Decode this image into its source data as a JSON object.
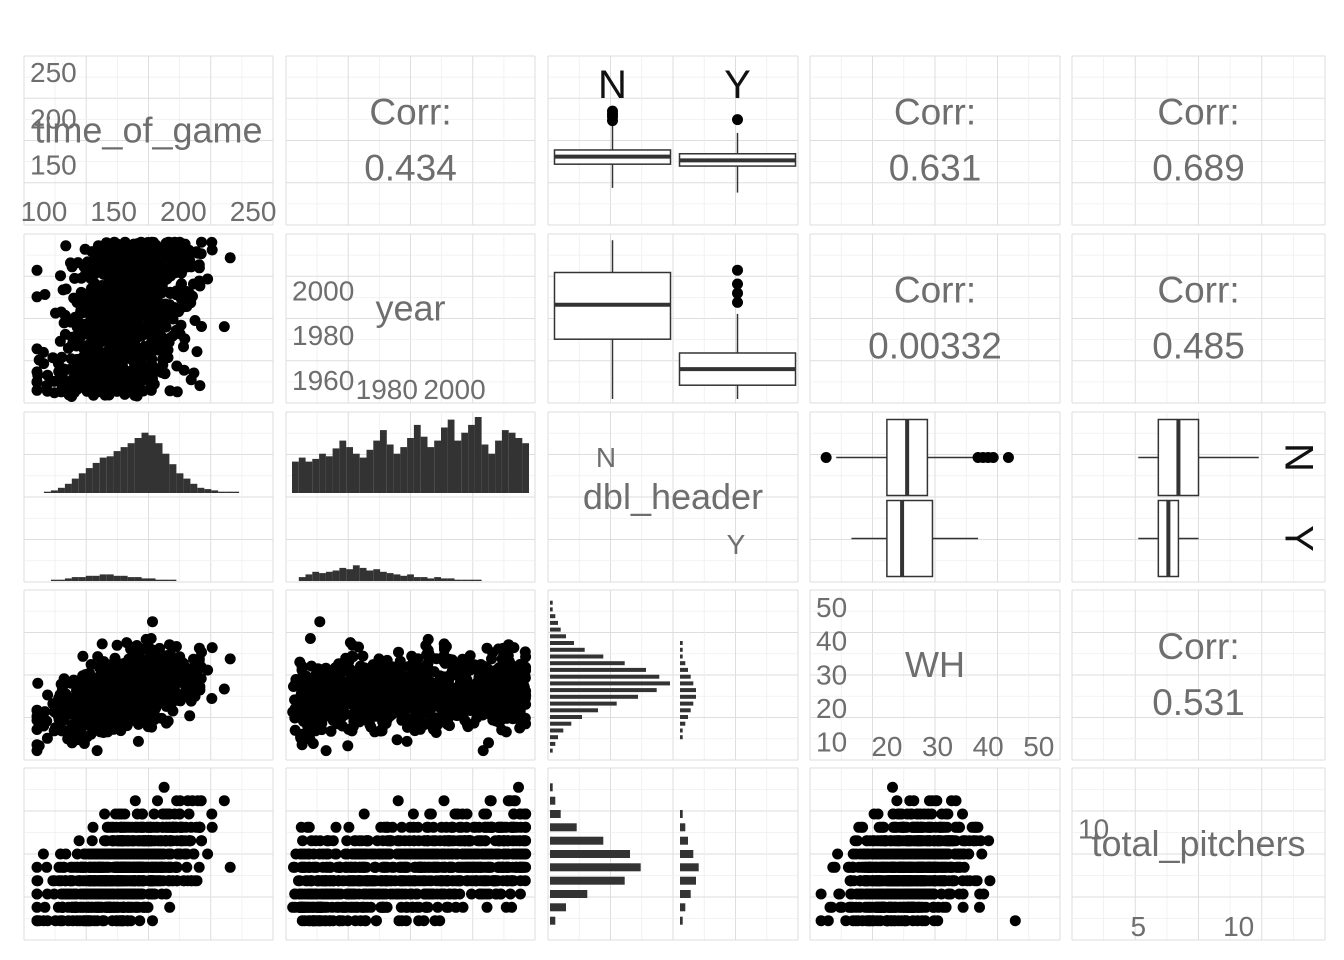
{
  "chart_data": {
    "type": "scatter",
    "variables": [
      "time_of_game",
      "year",
      "dbl_header",
      "WH",
      "total_pitchers"
    ],
    "facet_levels": [
      "N",
      "Y"
    ],
    "correlations": {
      "time_of_game_year": {
        "label": "Corr:",
        "value": "0.434"
      },
      "time_of_game_WH": {
        "label": "Corr:",
        "value": "0.631"
      },
      "time_of_game_total_pitchers": {
        "label": "Corr:",
        "value": "0.689"
      },
      "year_WH": {
        "label": "Corr:",
        "value": "0.00332"
      },
      "year_total_pitchers": {
        "label": "Corr:",
        "value": "0.485"
      },
      "WH_total_pitchers": {
        "label": "Corr:",
        "value": "0.531"
      }
    },
    "diag_axes": {
      "time_of_game": {
        "y_ticks": [
          "250",
          "200",
          "150"
        ],
        "x_ticks": [
          "100",
          "150",
          "200",
          "250"
        ]
      },
      "year": {
        "y_ticks": [
          "2000",
          "1980",
          "1960"
        ],
        "x_ticks": [
          "1980",
          "2000"
        ]
      },
      "WH": {
        "y_ticks": [
          "50",
          "40",
          "30",
          "20",
          "10"
        ],
        "x_ticks": [
          "20",
          "30",
          "40",
          "50"
        ]
      },
      "total_pitchers": {
        "y_ticks": [
          "10"
        ],
        "x_ticks": [
          "5",
          "10"
        ]
      }
    },
    "ranges": {
      "time_of_game": [
        90,
        260
      ],
      "year": [
        1952,
        2022
      ],
      "WH": [
        6,
        53
      ],
      "total_pitchers": [
        2,
        14
      ]
    },
    "boxplots": {
      "time_of_game": {
        "N": {
          "q1": 150,
          "median": 158,
          "q3": 165,
          "lo": 125,
          "hi": 192,
          "outliers": [
            196,
            200,
            203,
            206
          ]
        },
        "Y": {
          "q1": 148,
          "median": 154,
          "q3": 161,
          "lo": 120,
          "hi": 183,
          "outliers": [
            197
          ]
        }
      },
      "year": {
        "N": {
          "q1": 1978,
          "median": 1993,
          "q3": 2007,
          "lo": 1952,
          "hi": 2021,
          "outliers": []
        },
        "Y": {
          "q1": 1958,
          "median": 1965,
          "q3": 1972,
          "lo": 1952,
          "hi": 1989,
          "outliers": [
            1994,
            1998,
            2002,
            2008
          ]
        }
      },
      "WH": {
        "N": {
          "q1": 20,
          "median": 24,
          "q3": 28,
          "lo": 10,
          "hi": 37,
          "outliers": [
            8,
            38,
            39,
            40,
            41,
            44
          ]
        },
        "Y": {
          "q1": 20,
          "median": 23,
          "q3": 29,
          "lo": 13,
          "hi": 38,
          "outliers": []
        }
      },
      "total_pitchers": {
        "N": {
          "q1": 6,
          "median": 7,
          "q3": 8,
          "lo": 5,
          "hi": 11,
          "outliers": []
        },
        "Y": {
          "q1": 6,
          "median": 6.5,
          "q3": 7,
          "lo": 5,
          "hi": 8,
          "outliers": []
        }
      }
    },
    "histograms": {
      "time_of_game": {
        "start": 95,
        "width": 5,
        "N": [
          0,
          1,
          2,
          4,
          7,
          11,
          15,
          19,
          23,
          27,
          28,
          32,
          35,
          38,
          42,
          46,
          44,
          38,
          30,
          22,
          15,
          11,
          7,
          4,
          3,
          2,
          1,
          1,
          1,
          0,
          0,
          0,
          0
        ],
        "Y": [
          0,
          0,
          1,
          1,
          2,
          3,
          3,
          4,
          4,
          5,
          5,
          4,
          4,
          3,
          3,
          2,
          2,
          1,
          1,
          1,
          0,
          0,
          0,
          0,
          0,
          0,
          0,
          0,
          0,
          0,
          0,
          0,
          0
        ]
      },
      "year": {
        "start": 1952,
        "width": 2,
        "N": [
          24,
          27,
          24,
          26,
          30,
          28,
          34,
          40,
          35,
          30,
          27,
          33,
          40,
          48,
          37,
          30,
          35,
          42,
          52,
          43,
          35,
          40,
          50,
          56,
          40,
          46,
          52,
          58,
          37,
          30,
          40,
          48,
          46,
          42,
          38
        ],
        "Y": [
          0,
          3,
          5,
          7,
          6,
          7,
          8,
          10,
          9,
          12,
          10,
          8,
          9,
          7,
          6,
          5,
          4,
          5,
          3,
          3,
          2,
          3,
          2,
          2,
          1,
          1,
          1,
          1,
          0,
          0,
          0,
          0,
          0,
          0,
          0
        ]
      },
      "WH": {
        "start": 6,
        "width": 2,
        "N": [
          1,
          2,
          3,
          5,
          8,
          12,
          18,
          25,
          33,
          40,
          45,
          41,
          36,
          28,
          20,
          13,
          9,
          6,
          4,
          3,
          2,
          1,
          1,
          0
        ],
        "Y": [
          0,
          0,
          1,
          1,
          2,
          3,
          4,
          5,
          6,
          6,
          5,
          4,
          3,
          2,
          1,
          1,
          1,
          0,
          0,
          0,
          0,
          0,
          0,
          0
        ]
      },
      "total_pitchers": {
        "start": 2.5,
        "width": 1,
        "N": [
          2,
          6,
          14,
          28,
          34,
          30,
          20,
          10,
          4,
          2,
          1
        ],
        "Y": [
          1,
          2,
          4,
          6,
          7,
          5,
          3,
          2,
          1,
          0,
          0
        ]
      }
    }
  }
}
